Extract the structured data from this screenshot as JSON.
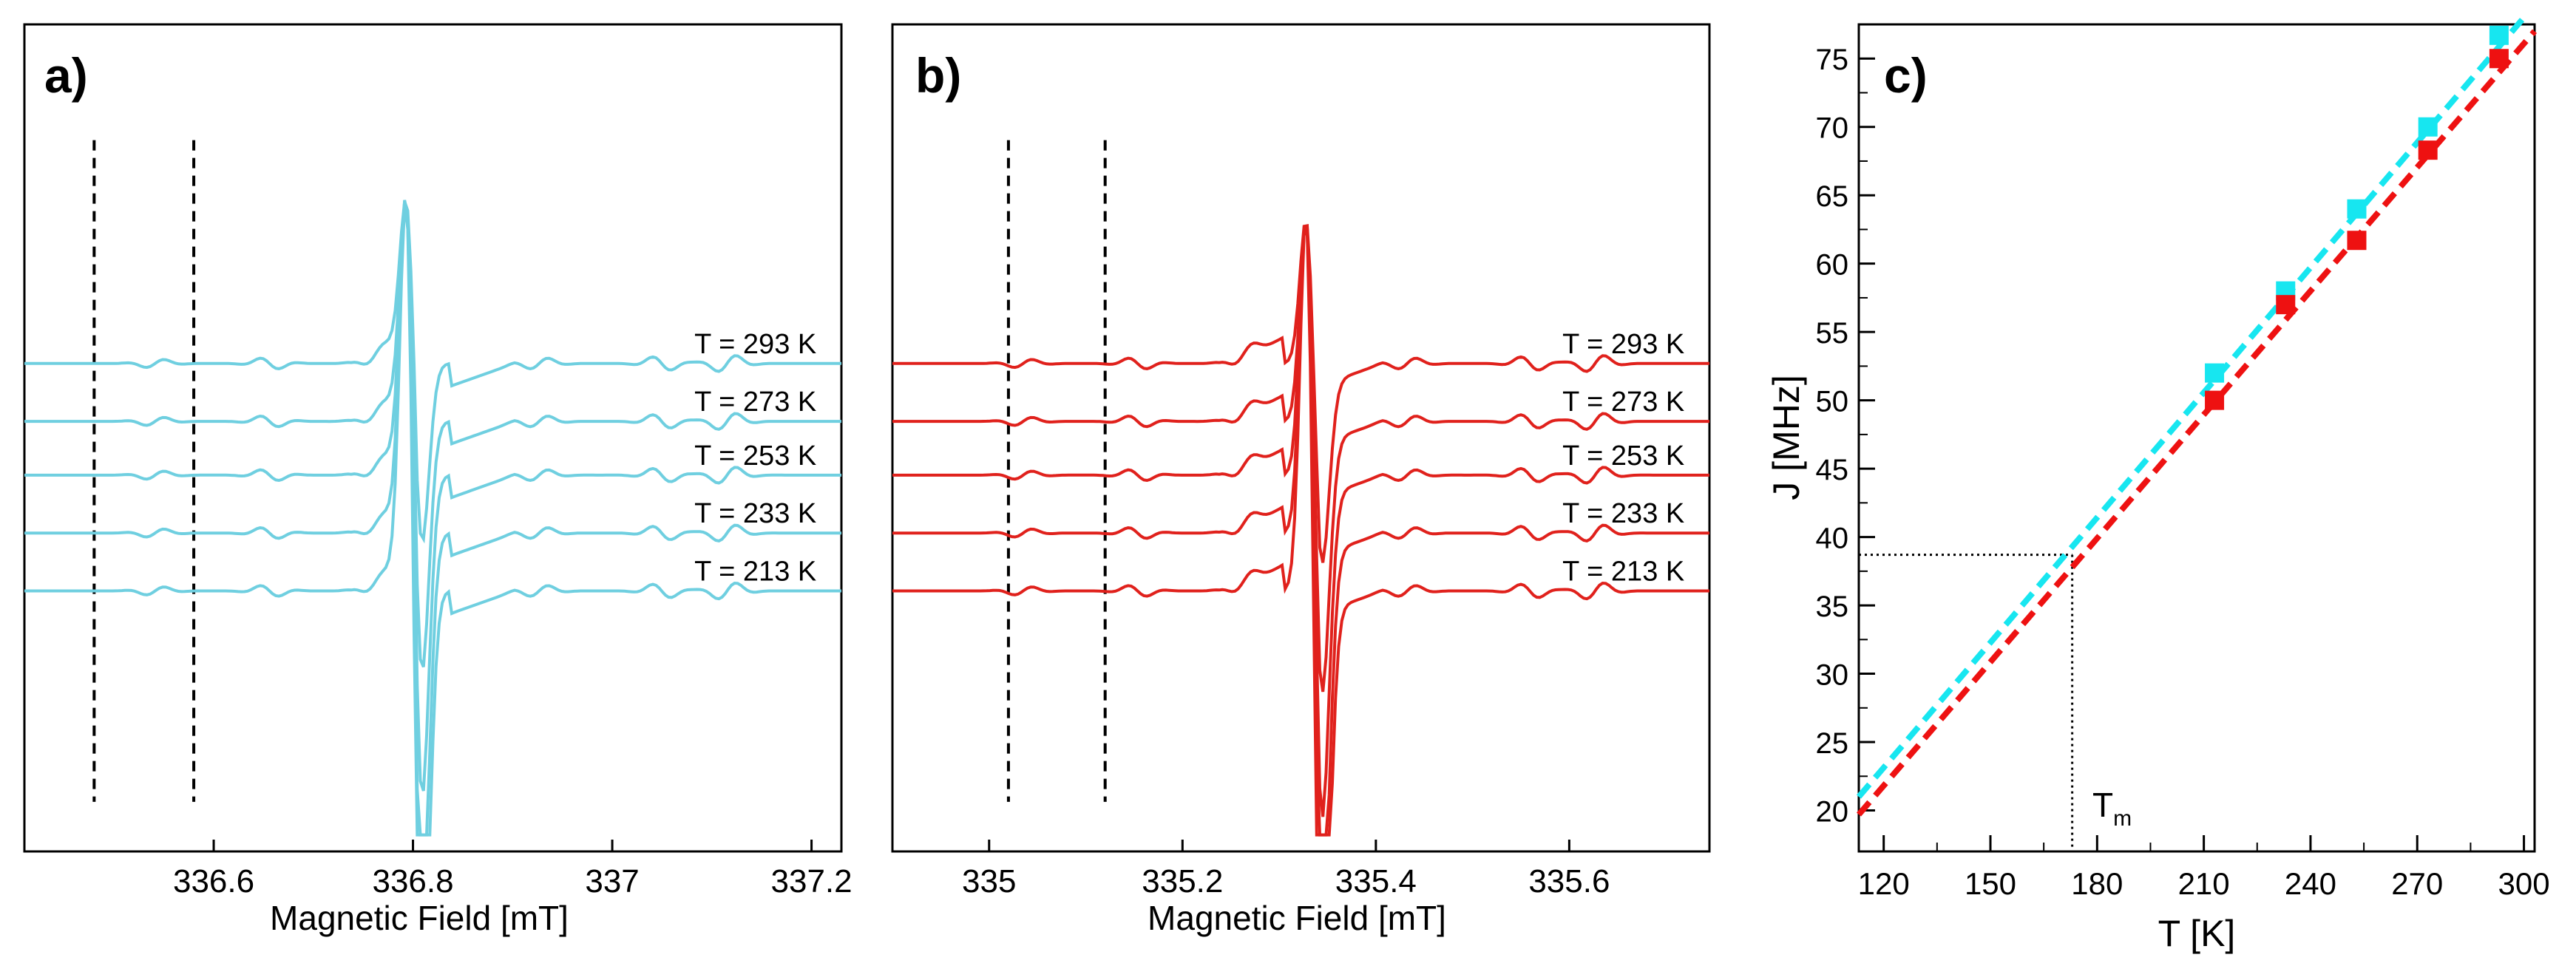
{
  "colors": {
    "cyan_trace": "#6fcfe0",
    "red_trace": "#e0211c",
    "cyan_marker": "#17e6f0",
    "red_marker": "#ee1111",
    "axis": "#000000"
  },
  "chart_data": [
    {
      "type": "line",
      "panel_label": "a)",
      "xlabel": "Magnetic Field [mT]",
      "xlim": [
        336.41,
        337.23
      ],
      "xticks": [
        336.6,
        336.8,
        337,
        337.2
      ],
      "xtick_labels": [
        "336.6",
        "336.8",
        "337",
        "337.2"
      ],
      "center_field": 336.795,
      "dashed_markers_x": [
        336.48,
        336.58
      ],
      "series": [
        {
          "name": "T = 293 K",
          "label": "T = 293 K",
          "baseline": 0.59
        },
        {
          "name": "T = 273 K",
          "label": "T = 273 K",
          "baseline": 0.52
        },
        {
          "name": "T = 253 K",
          "label": "T = 253 K",
          "baseline": 0.455
        },
        {
          "name": "T = 233 K",
          "label": "T = 233 K",
          "baseline": 0.385
        },
        {
          "name": "T = 213 K",
          "label": "T = 213 K",
          "baseline": 0.315
        }
      ]
    },
    {
      "type": "line",
      "panel_label": "b)",
      "xlabel": "Magnetic Field [mT]",
      "xlim": [
        334.9,
        335.745
      ],
      "xticks": [
        335,
        335.2,
        335.4,
        335.6
      ],
      "xtick_labels": [
        "335",
        "335.2",
        "335.4",
        "335.6"
      ],
      "center_field": 335.33,
      "dashed_markers_x": [
        335.02,
        335.12
      ],
      "series": [
        {
          "name": "T = 293 K",
          "label": "T = 293 K",
          "baseline": 0.59
        },
        {
          "name": "T = 273 K",
          "label": "T = 273 K",
          "baseline": 0.52
        },
        {
          "name": "T = 253 K",
          "label": "T = 253 K",
          "baseline": 0.455
        },
        {
          "name": "T = 233 K",
          "label": "T = 233 K",
          "baseline": 0.385
        },
        {
          "name": "T = 213 K",
          "label": "T = 213 K",
          "baseline": 0.315
        }
      ]
    },
    {
      "type": "scatter",
      "panel_label": "c)",
      "xlabel": "T [K]",
      "ylabel": "J [MHz]",
      "xlim": [
        113,
        303
      ],
      "ylim": [
        17,
        77.5
      ],
      "xticks": [
        120,
        150,
        180,
        210,
        240,
        270,
        300
      ],
      "yticks": [
        20,
        25,
        30,
        35,
        40,
        45,
        50,
        55,
        60,
        65,
        70,
        75
      ],
      "annotation": {
        "text": "T",
        "subscript": "m",
        "x": 173,
        "y": 38.7
      },
      "series": [
        {
          "name": "cyan",
          "x": [
            213,
            233,
            253,
            273,
            293
          ],
          "y": [
            52,
            58,
            64,
            70,
            76.7
          ],
          "fit": [
            [
              113,
              21
            ],
            [
              300,
              78
            ]
          ]
        },
        {
          "name": "red",
          "x": [
            213,
            233,
            253,
            273,
            293
          ],
          "y": [
            50,
            57,
            61.7,
            68.3,
            75
          ],
          "fit": [
            [
              113,
              19.7
            ],
            [
              303,
              77
            ]
          ]
        }
      ]
    }
  ]
}
